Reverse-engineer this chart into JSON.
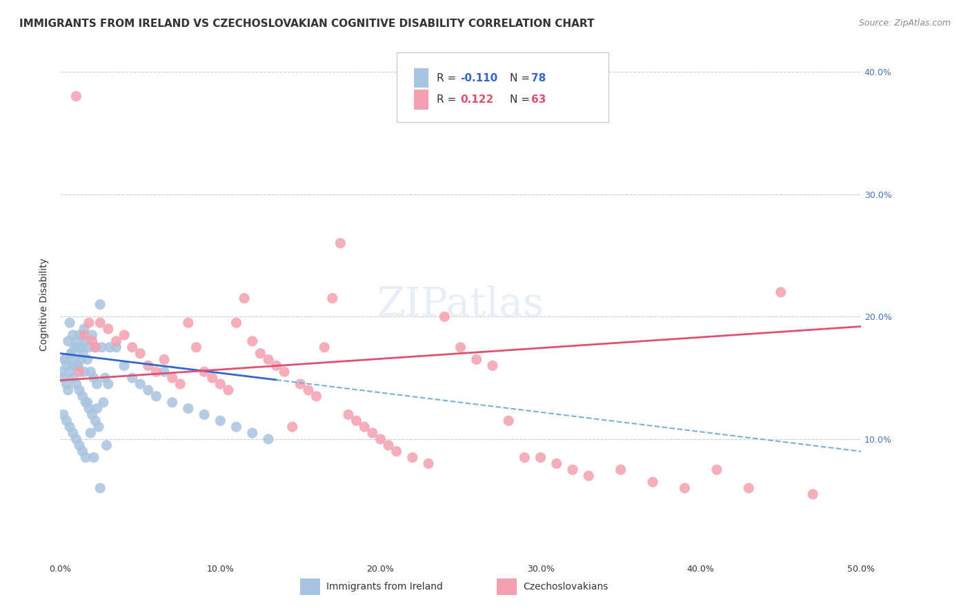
{
  "title": "IMMIGRANTS FROM IRELAND VS CZECHOSLOVAKIAN COGNITIVE DISABILITY CORRELATION CHART",
  "source": "Source: ZipAtlas.com",
  "ylabel": "Cognitive Disability",
  "xlim": [
    0.0,
    0.5
  ],
  "ylim": [
    0.0,
    0.42
  ],
  "legend_blue_r": "-0.110",
  "legend_blue_n": "78",
  "legend_pink_r": "0.122",
  "legend_pink_n": "63",
  "blue_color": "#a8c4e0",
  "pink_color": "#f4a0b0",
  "blue_line_color": "#3366cc",
  "pink_line_color": "#e05070",
  "blue_dash_color": "#7ab0d8",
  "blue_x": [
    0.008,
    0.012,
    0.01,
    0.015,
    0.018,
    0.005,
    0.007,
    0.009,
    0.011,
    0.013,
    0.016,
    0.02,
    0.022,
    0.025,
    0.006,
    0.008,
    0.01,
    0.012,
    0.014,
    0.017,
    0.019,
    0.021,
    0.023,
    0.026,
    0.028,
    0.003,
    0.004,
    0.006,
    0.008,
    0.01,
    0.012,
    0.014,
    0.016,
    0.018,
    0.02,
    0.022,
    0.024,
    0.002,
    0.004,
    0.006,
    0.008,
    0.01,
    0.012,
    0.014,
    0.016,
    0.03,
    0.035,
    0.04,
    0.045,
    0.05,
    0.055,
    0.06,
    0.065,
    0.07,
    0.08,
    0.09,
    0.1,
    0.11,
    0.12,
    0.13,
    0.001,
    0.002,
    0.003,
    0.004,
    0.005,
    0.007,
    0.009,
    0.011,
    0.013,
    0.015,
    0.017,
    0.019,
    0.021,
    0.023,
    0.025,
    0.027,
    0.029,
    0.031
  ],
  "blue_y": [
    0.16,
    0.185,
    0.175,
    0.19,
    0.175,
    0.18,
    0.17,
    0.165,
    0.16,
    0.175,
    0.18,
    0.185,
    0.175,
    0.21,
    0.195,
    0.185,
    0.18,
    0.175,
    0.17,
    0.165,
    0.155,
    0.15,
    0.145,
    0.175,
    0.15,
    0.165,
    0.16,
    0.155,
    0.15,
    0.145,
    0.14,
    0.135,
    0.13,
    0.125,
    0.12,
    0.115,
    0.11,
    0.12,
    0.115,
    0.11,
    0.105,
    0.1,
    0.095,
    0.09,
    0.085,
    0.145,
    0.175,
    0.16,
    0.15,
    0.145,
    0.14,
    0.135,
    0.155,
    0.13,
    0.125,
    0.12,
    0.115,
    0.11,
    0.105,
    0.1,
    0.155,
    0.15,
    0.165,
    0.145,
    0.14,
    0.17,
    0.175,
    0.16,
    0.165,
    0.155,
    0.13,
    0.105,
    0.085,
    0.125,
    0.06,
    0.13,
    0.095,
    0.175
  ],
  "pink_x": [
    0.01,
    0.012,
    0.015,
    0.018,
    0.02,
    0.022,
    0.025,
    0.03,
    0.035,
    0.04,
    0.045,
    0.05,
    0.055,
    0.06,
    0.065,
    0.07,
    0.075,
    0.08,
    0.085,
    0.09,
    0.095,
    0.1,
    0.105,
    0.11,
    0.115,
    0.12,
    0.125,
    0.13,
    0.135,
    0.14,
    0.145,
    0.15,
    0.155,
    0.16,
    0.165,
    0.17,
    0.175,
    0.18,
    0.185,
    0.19,
    0.195,
    0.2,
    0.205,
    0.21,
    0.22,
    0.23,
    0.24,
    0.25,
    0.26,
    0.27,
    0.28,
    0.29,
    0.3,
    0.31,
    0.32,
    0.33,
    0.35,
    0.37,
    0.39,
    0.41,
    0.43,
    0.45,
    0.47
  ],
  "pink_y": [
    0.38,
    0.155,
    0.185,
    0.195,
    0.18,
    0.175,
    0.195,
    0.19,
    0.18,
    0.185,
    0.175,
    0.17,
    0.16,
    0.155,
    0.165,
    0.15,
    0.145,
    0.195,
    0.175,
    0.155,
    0.15,
    0.145,
    0.14,
    0.195,
    0.215,
    0.18,
    0.17,
    0.165,
    0.16,
    0.155,
    0.11,
    0.145,
    0.14,
    0.135,
    0.175,
    0.215,
    0.26,
    0.12,
    0.115,
    0.11,
    0.105,
    0.1,
    0.095,
    0.09,
    0.085,
    0.08,
    0.2,
    0.175,
    0.165,
    0.16,
    0.115,
    0.085,
    0.085,
    0.08,
    0.075,
    0.07,
    0.075,
    0.065,
    0.06,
    0.075,
    0.06,
    0.22,
    0.055
  ]
}
